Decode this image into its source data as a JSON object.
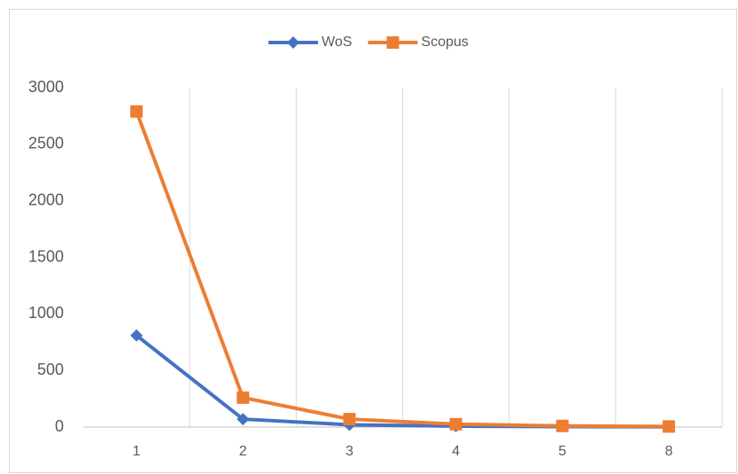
{
  "chart_data": {
    "type": "line",
    "categories": [
      "1",
      "2",
      "3",
      "4",
      "5",
      "8"
    ],
    "series": [
      {
        "name": "WoS",
        "color": "#4472c4",
        "marker": "diamond",
        "values": [
          810,
          70,
          20,
          8,
          4,
          2
        ]
      },
      {
        "name": "Scopus",
        "color": "#ed7d31",
        "marker": "square",
        "values": [
          2790,
          260,
          70,
          25,
          10,
          5
        ]
      }
    ],
    "ylim": [
      0,
      3000
    ],
    "yticks": [
      0,
      500,
      1000,
      1500,
      2000,
      2500,
      3000
    ],
    "grid": "x",
    "legend": "top"
  }
}
